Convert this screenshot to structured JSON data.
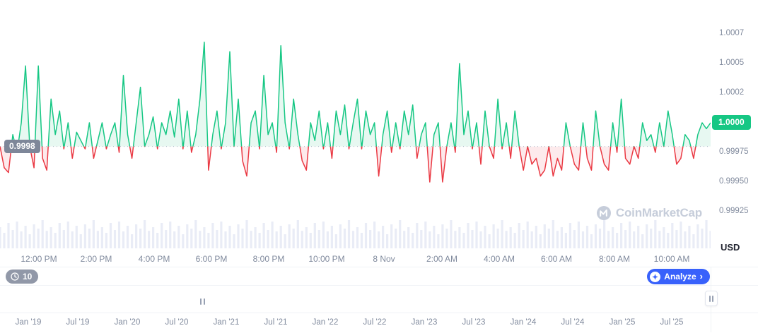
{
  "watermark": {
    "text": "CoinMarketCap"
  },
  "colors": {
    "up": "#16c784",
    "down": "#ea3943",
    "up_fill": "#e7f8f1",
    "down_fill": "#fdeaec",
    "volume": "#e9ecf6",
    "accent_blue": "#3861fb",
    "axis_text": "#808a9d",
    "badge_gray": "#7e8799",
    "watermark": "#c6cdda",
    "divider": "#eff2f5"
  },
  "right_axis": {
    "labels": [
      {
        "text": "1.0007",
        "value": 1.00075
      },
      {
        "text": "1.0005",
        "value": 1.0005
      },
      {
        "text": "1.0002",
        "value": 1.00025
      },
      {
        "text": "1.0000",
        "value": 1.0,
        "current": true
      },
      {
        "text": "0.99975",
        "value": 0.99975
      },
      {
        "text": "0.99950",
        "value": 0.9995
      },
      {
        "text": "0.99925",
        "value": 0.99925
      }
    ],
    "current_price": "1.0000",
    "currency": "USD"
  },
  "x_axis": {
    "labels": [
      "12:00 PM",
      "2:00 PM",
      "4:00 PM",
      "6:00 PM",
      "8:00 PM",
      "10:00 PM",
      "8 Nov",
      "2:00 AM",
      "4:00 AM",
      "6:00 AM",
      "8:00 AM",
      "10:00 AM"
    ]
  },
  "navigator": {
    "history_count": "10",
    "analyze_label": "Analyze",
    "analyze_chevron": "›",
    "dates": [
      "Jan '19",
      "Jul '19",
      "Jan '20",
      "Jul '20",
      "Jan '21",
      "Jul '21",
      "Jan '22",
      "Jul '22",
      "Jan '23",
      "Jul '23",
      "Jan '24",
      "Jul '24",
      "Jan '25",
      "Jul '25"
    ]
  },
  "chart_data": {
    "type": "line",
    "title": "",
    "ylabel": "USD",
    "ylim": [
      0.99925,
      1.00075
    ],
    "baseline": 0.9998,
    "baseline_label": "0.9998",
    "legend": [],
    "grid": false,
    "prices": [
      0.9998,
      0.99962,
      0.99958,
      0.9999,
      0.99975,
      1.0,
      1.00048,
      0.9998,
      0.99962,
      1.00048,
      0.9997,
      0.9996,
      1.0002,
      0.9999,
      1.0001,
      0.99978,
      1.0,
      0.9997,
      0.99992,
      0.99985,
      0.99978,
      1.0,
      0.9997,
      0.99985,
      1.0,
      0.99978,
      0.9999,
      1.0,
      0.99975,
      1.0004,
      0.9999,
      0.9997,
      1.0,
      1.0003,
      0.9998,
      0.9999,
      1.00005,
      0.99978,
      1.0,
      0.9999,
      1.0001,
      0.99988,
      1.0002,
      0.99978,
      1.0001,
      0.99975,
      0.9999,
      1.0002,
      1.00068,
      0.9996,
      0.9999,
      1.0001,
      0.99978,
      1.0,
      1.0006,
      0.9998,
      1.0002,
      0.99968,
      0.99955,
      1.0,
      1.0001,
      0.99978,
      1.0004,
      0.9999,
      1.0,
      0.99975,
      1.00065,
      1.0,
      0.99978,
      1.0002,
      0.9999,
      0.99968,
      0.9996,
      1.0,
      0.99985,
      1.0001,
      0.99978,
      1.0,
      0.9997,
      1.0001,
      0.9999,
      1.00015,
      0.99978,
      1.0,
      1.0002,
      0.99978,
      1.0001,
      0.9999,
      1.0,
      0.99955,
      0.9999,
      1.0001,
      0.99975,
      1.0,
      0.99978,
      1.0001,
      0.9999,
      1.00015,
      0.9997,
      0.9999,
      1.0,
      0.9995,
      0.9999,
      1.0,
      0.9995,
      0.9998,
      1.0,
      0.99975,
      1.0005,
      0.9999,
      1.0001,
      0.99978,
      1.0,
      0.99965,
      1.0001,
      0.9998,
      0.9997,
      1.0002,
      0.99978,
      1.0,
      0.9997,
      1.0001,
      0.9998,
      0.9996,
      0.9998,
      0.99965,
      0.9997,
      0.99955,
      0.9996,
      0.9998,
      0.99955,
      0.9997,
      0.9996,
      1.0,
      0.9998,
      0.99965,
      0.9996,
      1.0,
      0.9997,
      0.9996,
      1.0001,
      0.9998,
      0.99965,
      0.9996,
      1.0,
      0.99975,
      1.0002,
      0.9997,
      0.99965,
      0.9998,
      0.9997,
      1.0,
      0.99985,
      0.9999,
      0.99975,
      1.0,
      0.9998,
      1.0001,
      0.9999,
      0.99965,
      0.9997,
      0.9999,
      0.99985,
      0.9997,
      0.9999,
      1.0,
      0.99995,
      1.0
    ],
    "volume": [
      0.75,
      0.55,
      0.9,
      0.65,
      0.95,
      0.6,
      0.8,
      0.5,
      0.85,
      0.7,
      1.0,
      0.62,
      0.75,
      0.55,
      0.9,
      0.65,
      0.95,
      0.6,
      0.8,
      0.5,
      0.85,
      0.7,
      1.0,
      0.62,
      0.75,
      0.55,
      0.9,
      0.65,
      0.95,
      0.6,
      0.8,
      0.5,
      0.85,
      0.7,
      1.0,
      0.62,
      0.75,
      0.55,
      0.9,
      0.65,
      0.95,
      0.6,
      0.8,
      0.5,
      0.85,
      0.7,
      1.0,
      0.62,
      0.75,
      0.55,
      0.9,
      0.65,
      0.95,
      0.6,
      0.8,
      0.5,
      0.85,
      0.7,
      1.0,
      0.62,
      0.75,
      0.55,
      0.9,
      0.65,
      0.95,
      0.6,
      0.8,
      0.5,
      0.85,
      0.7,
      1.0,
      0.62,
      0.75,
      0.55,
      0.9,
      0.65,
      0.95,
      0.6,
      0.8,
      0.5,
      0.85,
      0.7,
      1.0,
      0.62,
      0.75,
      0.55,
      0.9,
      0.65,
      0.95,
      0.6,
      0.8,
      0.5,
      0.85,
      0.7,
      1.0,
      0.62,
      0.75,
      0.55,
      0.9,
      0.65,
      0.95,
      0.6,
      0.8,
      0.5,
      0.85,
      0.7,
      1.0,
      0.62,
      0.75,
      0.55,
      0.9,
      0.65,
      0.95,
      0.6,
      0.8,
      0.5,
      0.85,
      0.7,
      1.0,
      0.62,
      0.75,
      0.55,
      0.9,
      0.65,
      0.95,
      0.6,
      0.8,
      0.5,
      0.85,
      0.7,
      1.0,
      0.62,
      0.75,
      0.55,
      0.9,
      0.65,
      0.95,
      0.6,
      0.8,
      0.5,
      0.85,
      0.7,
      1.0,
      0.62,
      0.75,
      0.55,
      0.9,
      0.65,
      0.95,
      0.6,
      0.8,
      0.5,
      0.85,
      0.7,
      1.0,
      0.62,
      0.75,
      0.55,
      0.9,
      0.65,
      0.95,
      0.6,
      0.8,
      0.5,
      0.85,
      0.7,
      1.0,
      0.62
    ]
  }
}
